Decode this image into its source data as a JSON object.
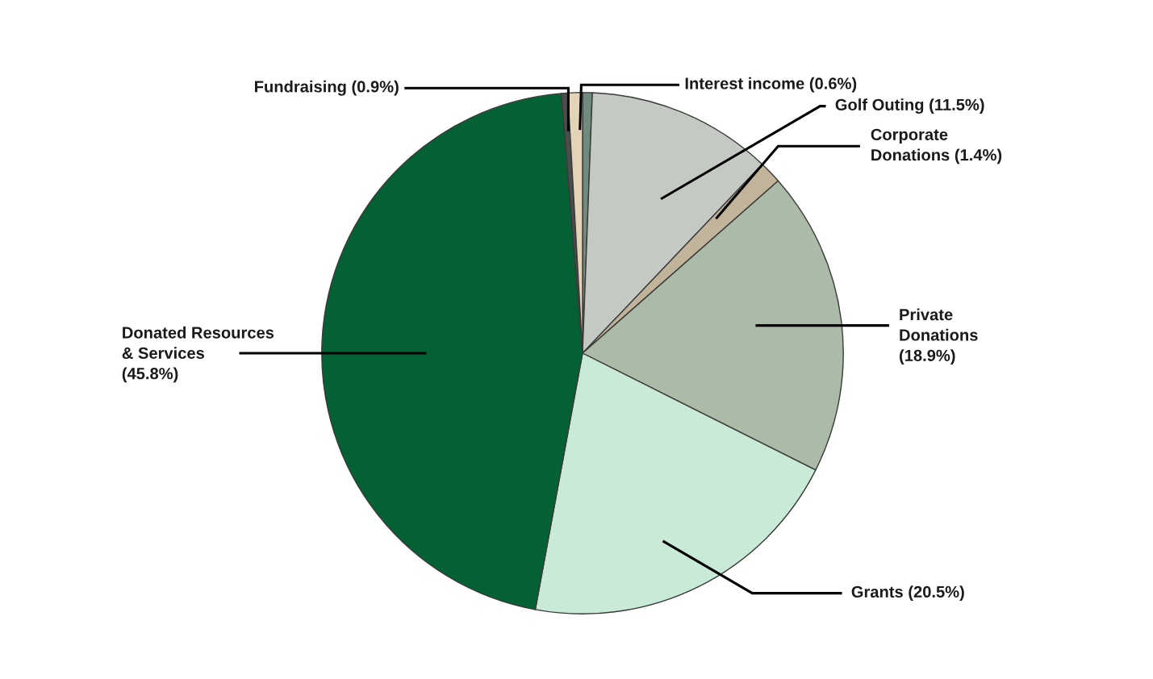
{
  "chart_data": {
    "type": "pie",
    "categories": [
      "Interest income",
      "Golf Outing",
      "Corporate\nDonations",
      "Private\nDonations",
      "Grants",
      "Donated Resources\n& Services",
      null,
      "Fundraising"
    ],
    "values": [
      0.6,
      11.5,
      1.4,
      18.9,
      20.5,
      45.8,
      0.4,
      0.9
    ],
    "value_labels": [
      "(0.6%)",
      "(11.5%)",
      "(1.4%)",
      "(18.9%)",
      "(20.5%)",
      "(45.8%)",
      null,
      "(0.9%)"
    ],
    "colors": [
      "#708a7e",
      "#c5c9c3",
      "#c2b49a",
      "#abbba7",
      "#c8ead6",
      "#036133",
      "#4a4d4c",
      "#e3d4b8"
    ]
  }
}
